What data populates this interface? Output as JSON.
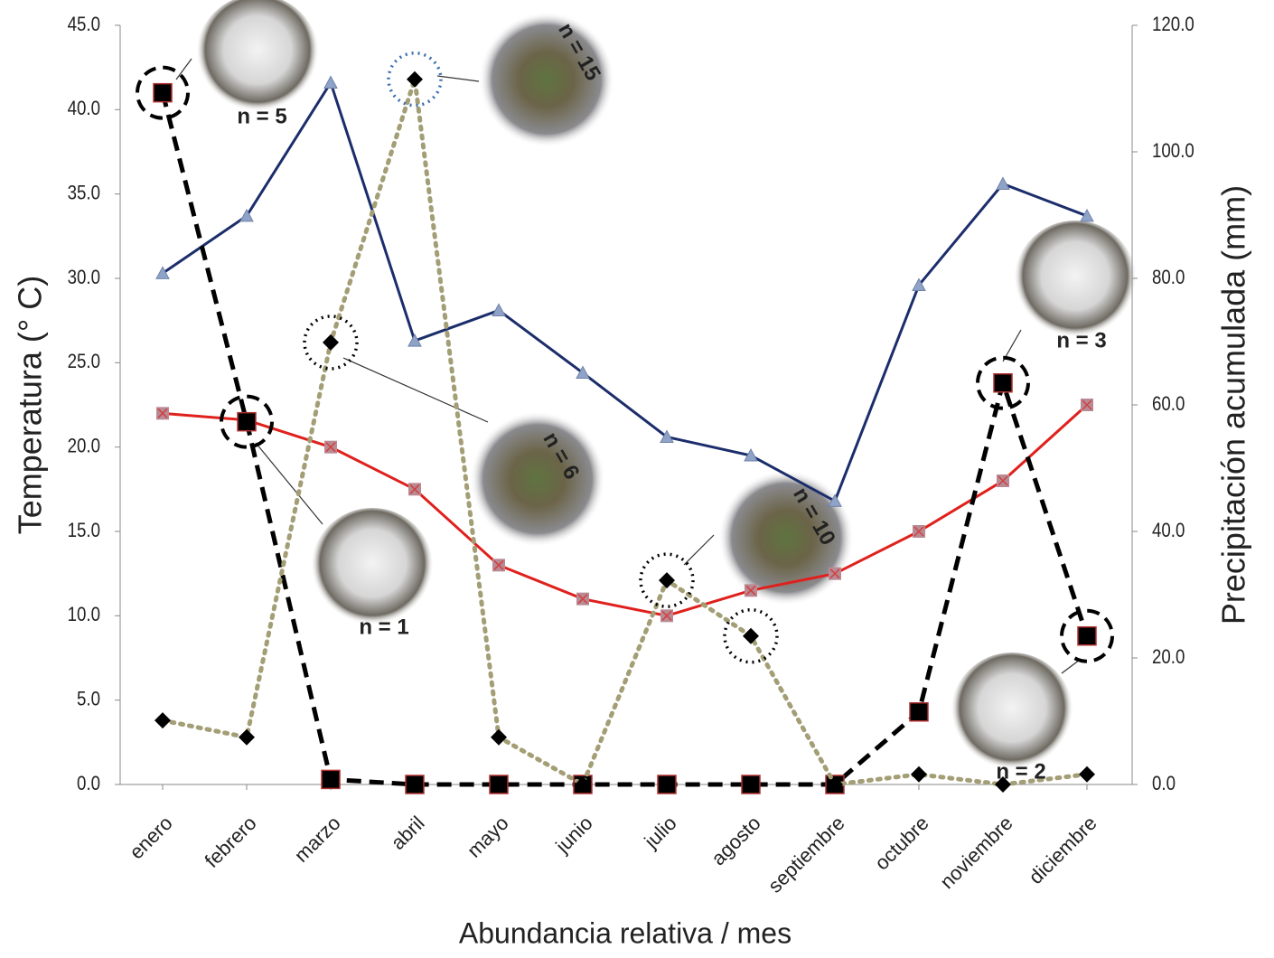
{
  "chart_data": {
    "type": "line",
    "xlabel": "Abundancia relativa / mes",
    "ylabel": "Temperatura (° C)",
    "y2label": "Precipitación acumulada (mm)",
    "categories": [
      "enero",
      "febrero",
      "marzo",
      "abril",
      "mayo",
      "junio",
      "julio",
      "agosto",
      "septiembre",
      "octubre",
      "noviembre",
      "diciembre"
    ],
    "ylim": [
      0,
      45
    ],
    "yticks": [
      {
        "value": 0,
        "label": "0.0"
      },
      {
        "value": 5,
        "label": "5.0"
      },
      {
        "value": 10,
        "label": "10.0"
      },
      {
        "value": 15,
        "label": "15.0"
      },
      {
        "value": 20,
        "label": "20.0"
      },
      {
        "value": 25,
        "label": "25.0"
      },
      {
        "value": 30,
        "label": "30.0"
      },
      {
        "value": 35,
        "label": "35.0"
      },
      {
        "value": 40,
        "label": "40.0"
      },
      {
        "value": 45,
        "label": "45.0"
      }
    ],
    "y2lim": [
      0,
      120
    ],
    "y2ticks": [
      {
        "value": 0,
        "label": "0.0"
      },
      {
        "value": 20,
        "label": "20.0"
      },
      {
        "value": 40,
        "label": "40.0"
      },
      {
        "value": 60,
        "label": "60.0"
      },
      {
        "value": 80,
        "label": "80.0"
      },
      {
        "value": 100,
        "label": "100.0"
      },
      {
        "value": 120,
        "label": "120.0"
      }
    ],
    "series": [
      {
        "color": "#1b2d6b",
        "marker_color": "#8fa3c8",
        "marker": "triangle",
        "dash": "solid",
        "values": [
          30.3,
          33.7,
          41.6,
          26.3,
          28.1,
          24.4,
          20.6,
          19.5,
          16.8,
          29.6,
          35.6,
          33.7
        ]
      },
      {
        "color": "#e0201c",
        "marker_color": "#b98a94",
        "marker": "square-x",
        "dash": "solid",
        "values": [
          22.0,
          21.6,
          20.0,
          17.5,
          13.0,
          11.0,
          10.0,
          11.5,
          12.5,
          15.0,
          18.0,
          22.5
        ]
      },
      {
        "color": "#000000",
        "marker_color": "#000000",
        "marker": "square",
        "dash": "dashed",
        "values": [
          41.0,
          21.5,
          0.3,
          0,
          0,
          0,
          0,
          0,
          0,
          4.3,
          23.8,
          8.8
        ]
      },
      {
        "color": "#a39e75",
        "marker_color": "#000000",
        "marker": "diamond",
        "dash": "dotted",
        "values": [
          3.8,
          2.8,
          26.2,
          41.8,
          2.8,
          0,
          12.1,
          8.8,
          0,
          0.6,
          0,
          0.6
        ]
      }
    ],
    "annotations": [
      "n = 5",
      "n = 15",
      "n = 6",
      "n = 1",
      "n = 10",
      "n = 3",
      "n = 2"
    ]
  }
}
